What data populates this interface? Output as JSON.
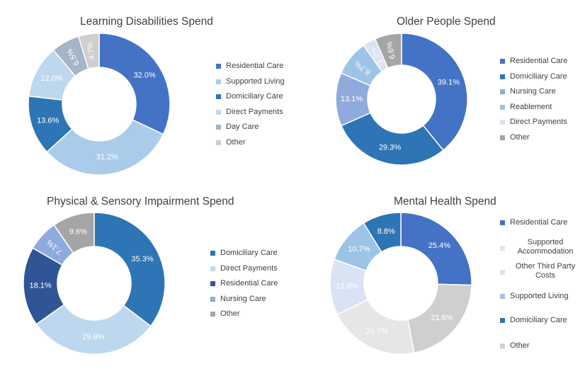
{
  "chart_data": [
    {
      "type": "pie",
      "title": "Learning Disabilities Spend",
      "series": [
        {
          "label": "Residential Care",
          "value": 32.0,
          "display": "32.0%",
          "color": "#4472c4"
        },
        {
          "label": "Supported Living",
          "value": 31.2,
          "display": "31.2%",
          "color": "#abcbeb"
        },
        {
          "label": "Domiciliary Care",
          "value": 13.6,
          "display": "13.6%",
          "color": "#2e75b6"
        },
        {
          "label": "Direct Payments",
          "value": 12.0,
          "display": "12.0%",
          "color": "#bdd7ee"
        },
        {
          "label": "Day Care",
          "value": 6.5,
          "display": "6.5%",
          "color": "#a5b4c8"
        },
        {
          "label": "Other",
          "value": 4.7,
          "display": "4.7%",
          "color": "#d0cece"
        }
      ]
    },
    {
      "type": "pie",
      "title": "Older People Spend",
      "series": [
        {
          "label": "Residential Care",
          "value": 39.1,
          "display": "39.1%",
          "color": "#4472c4"
        },
        {
          "label": "Domiciliary Care",
          "value": 29.3,
          "display": "29.3%",
          "color": "#2e75b6"
        },
        {
          "label": "Nursing Care",
          "value": 13.1,
          "display": "13.1%",
          "color": "#8faadc"
        },
        {
          "label": "Reablement",
          "value": 8.7,
          "display": "8.7%",
          "color": "#9dc3e6"
        },
        {
          "label": "Direct Payments",
          "value": 3.2,
          "display": "3.2%",
          "color": "#d9e1f2"
        },
        {
          "label": "Other",
          "value": 6.6,
          "display": "6.6%",
          "color": "#a5a5a5"
        }
      ]
    },
    {
      "type": "pie",
      "title": "Physical & Sensory Impairment Spend",
      "series": [
        {
          "label": "Domiciliary Care",
          "value": 35.3,
          "display": "35.3%",
          "color": "#2e75b6"
        },
        {
          "label": "Direct Payments",
          "value": 29.9,
          "display": "29.9%",
          "color": "#bdd7ee"
        },
        {
          "label": "Residential Care",
          "value": 18.1,
          "display": "18.1%",
          "color": "#2f5597"
        },
        {
          "label": "Nursing Care",
          "value": 7.1,
          "display": "7.1%",
          "color": "#8faadc"
        },
        {
          "label": "Other",
          "value": 9.6,
          "display": "9.6%",
          "color": "#a5a5a5"
        }
      ]
    },
    {
      "type": "pie",
      "title": "Mental Health Spend",
      "series": [
        {
          "label": "Residential Care",
          "value": 25.4,
          "display": "25.4%",
          "color": "#4472c4"
        },
        {
          "label": "Other",
          "value": 21.6,
          "display": "21.6%",
          "color": "#d0cece"
        },
        {
          "label": "Supported Accommodation",
          "value": 20.7,
          "display": "20.7%",
          "color": "#e7e6e6"
        },
        {
          "label": "Other Third Party Costs",
          "value": 12.8,
          "display": "12.8%",
          "color": "#dae3f3"
        },
        {
          "label": "Supported Living",
          "value": 10.7,
          "display": "10.7%",
          "color": "#9dc3e6"
        },
        {
          "label": "Domiciliary Care",
          "value": 8.8,
          "display": "8.8%",
          "color": "#2e75b6"
        }
      ],
      "legend_order": [
        "Residential Care",
        "Supported Accommodation",
        "Other Third Party Costs",
        "Supported Living",
        "Domiciliary Care",
        "Other"
      ]
    }
  ]
}
